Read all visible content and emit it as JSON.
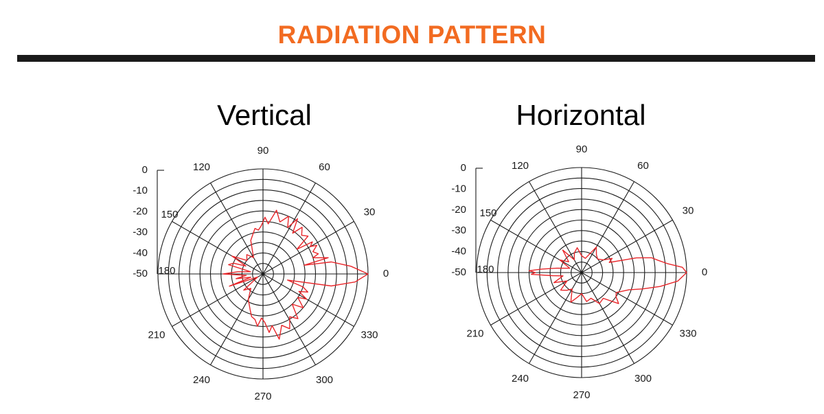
{
  "header": {
    "title": "RADIATION PATTERN"
  },
  "colors": {
    "title": "#F26B21",
    "rule": "#1a1a1a",
    "grid": "#1a1a1a",
    "trace": "#E8262A",
    "text": "#1a1a1a"
  },
  "chart_data": [
    {
      "type": "polar",
      "title": "Vertical",
      "angle_unit": "degrees",
      "angle_ticks": [
        "0",
        "30",
        "60",
        "90",
        "120",
        "150",
        "180",
        "210",
        "240",
        "270",
        "300",
        "330"
      ],
      "radial_ticks": [
        "0",
        "-10",
        "-20",
        "-30",
        "-40",
        "-50"
      ],
      "rlim": [
        -50,
        0
      ],
      "grid": true,
      "series": [
        {
          "points": [
            [
              0,
              0
            ],
            [
              5,
              -8
            ],
            [
              10,
              -17
            ],
            [
              12,
              -30
            ],
            [
              14,
              -18
            ],
            [
              18,
              -25
            ],
            [
              20,
              -22
            ],
            [
              24,
              -24
            ],
            [
              28,
              -21
            ],
            [
              30,
              -24
            ],
            [
              33,
              -22
            ],
            [
              36,
              -30
            ],
            [
              40,
              -22
            ],
            [
              45,
              -24
            ],
            [
              50,
              -21
            ],
            [
              54,
              -26
            ],
            [
              58,
              -19
            ],
            [
              62,
              -25
            ],
            [
              66,
              -20
            ],
            [
              72,
              -24
            ],
            [
              78,
              -19
            ],
            [
              84,
              -26
            ],
            [
              88,
              -23
            ],
            [
              92,
              -27
            ],
            [
              96,
              -29
            ],
            [
              100,
              -28
            ],
            [
              110,
              -33
            ],
            [
              120,
              -41
            ],
            [
              130,
              -38
            ],
            [
              140,
              -40
            ],
            [
              150,
              -33
            ],
            [
              155,
              -41
            ],
            [
              160,
              -35
            ],
            [
              165,
              -33
            ],
            [
              170,
              -44
            ],
            [
              175,
              -38
            ],
            [
              180,
              -31
            ],
            [
              185,
              -42
            ],
            [
              190,
              -37
            ],
            [
              195,
              -44
            ],
            [
              200,
              -33
            ],
            [
              210,
              -47
            ],
            [
              220,
              -38
            ],
            [
              230,
              -41
            ],
            [
              240,
              -36
            ],
            [
              250,
              -32
            ],
            [
              255,
              -29
            ],
            [
              260,
              -28
            ],
            [
              264,
              -25
            ],
            [
              268,
              -29
            ],
            [
              272,
              -27
            ],
            [
              276,
              -22
            ],
            [
              280,
              -25
            ],
            [
              284,
              -18
            ],
            [
              290,
              -24
            ],
            [
              296,
              -21
            ],
            [
              302,
              -26
            ],
            [
              308,
              -23
            ],
            [
              314,
              -30
            ],
            [
              320,
              -25
            ],
            [
              326,
              -30
            ],
            [
              330,
              -26
            ],
            [
              334,
              -31
            ],
            [
              338,
              -27
            ],
            [
              342,
              -30
            ],
            [
              346,
              -38
            ],
            [
              350,
              -17
            ],
            [
              355,
              -6
            ],
            [
              360,
              0
            ]
          ]
        }
      ]
    },
    {
      "type": "polar",
      "title": "Horizontal",
      "angle_unit": "degrees",
      "angle_ticks": [
        "0",
        "30",
        "60",
        "90",
        "120",
        "150",
        "180",
        "210",
        "240",
        "270",
        "300",
        "330"
      ],
      "radial_ticks": [
        "0",
        "-10",
        "-20",
        "-30",
        "-40",
        "-50"
      ],
      "rlim": [
        -50,
        0
      ],
      "grid": true,
      "series": [
        {
          "points": [
            [
              0,
              0
            ],
            [
              3,
              -2
            ],
            [
              6,
              -9
            ],
            [
              9,
              -13
            ],
            [
              12,
              -16
            ],
            [
              15,
              -23
            ],
            [
              20,
              -36
            ],
            [
              25,
              -34
            ],
            [
              30,
              -38
            ],
            [
              40,
              -40
            ],
            [
              50,
              -39
            ],
            [
              60,
              -36
            ],
            [
              75,
              -43
            ],
            [
              90,
              -42
            ],
            [
              100,
              -38
            ],
            [
              110,
              -40
            ],
            [
              120,
              -43
            ],
            [
              130,
              -36
            ],
            [
              140,
              -42
            ],
            [
              150,
              -38
            ],
            [
              160,
              -44
            ],
            [
              170,
              -38
            ],
            [
              175,
              -31
            ],
            [
              178,
              -25
            ],
            [
              180,
              -28
            ],
            [
              182,
              -26
            ],
            [
              186,
              -36
            ],
            [
              190,
              -41
            ],
            [
              200,
              -36
            ],
            [
              210,
              -42
            ],
            [
              220,
              -37
            ],
            [
              230,
              -39
            ],
            [
              240,
              -41
            ],
            [
              250,
              -35
            ],
            [
              260,
              -38
            ],
            [
              270,
              -40
            ],
            [
              280,
              -36
            ],
            [
              290,
              -37
            ],
            [
              300,
              -33
            ],
            [
              310,
              -34
            ],
            [
              320,
              -27
            ],
            [
              325,
              -30
            ],
            [
              330,
              -31
            ],
            [
              340,
              -26
            ],
            [
              345,
              -20
            ],
            [
              350,
              -12
            ],
            [
              355,
              -4
            ],
            [
              360,
              0
            ]
          ]
        }
      ]
    }
  ]
}
